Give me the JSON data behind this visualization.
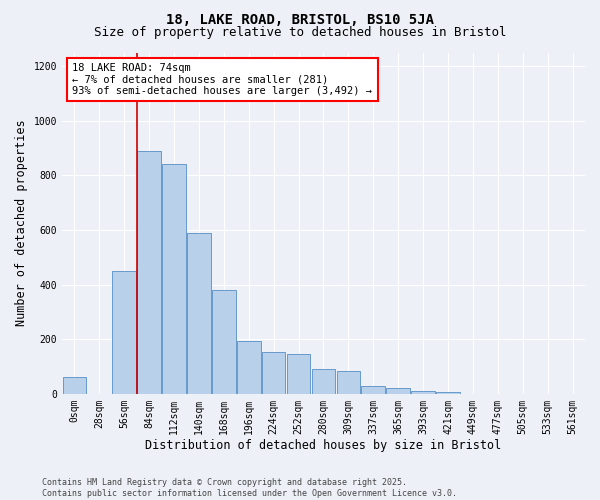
{
  "title1": "18, LAKE ROAD, BRISTOL, BS10 5JA",
  "title2": "Size of property relative to detached houses in Bristol",
  "xlabel": "Distribution of detached houses by size in Bristol",
  "ylabel": "Number of detached properties",
  "categories": [
    "0sqm",
    "28sqm",
    "56sqm",
    "84sqm",
    "112sqm",
    "140sqm",
    "168sqm",
    "196sqm",
    "224sqm",
    "252sqm",
    "280sqm",
    "309sqm",
    "337sqm",
    "365sqm",
    "393sqm",
    "421sqm",
    "449sqm",
    "477sqm",
    "505sqm",
    "533sqm",
    "561sqm"
  ],
  "values": [
    62,
    0,
    450,
    890,
    840,
    590,
    380,
    195,
    155,
    145,
    90,
    85,
    30,
    20,
    12,
    8,
    0,
    0,
    0,
    0,
    0
  ],
  "bar_color": "#b8d0ea",
  "bar_edge_color": "#6699cc",
  "highlight_color": "#cc0000",
  "red_line_x": 2.5,
  "annotation_text_line1": "18 LAKE ROAD: 74sqm",
  "annotation_text_line2": "← 7% of detached houses are smaller (281)",
  "annotation_text_line3": "93% of semi-detached houses are larger (3,492) →",
  "ylim": [
    0,
    1250
  ],
  "yticks": [
    0,
    200,
    400,
    600,
    800,
    1000,
    1200
  ],
  "background_color": "#edf1f7",
  "grid_color": "#ffffff",
  "footer_text": "Contains HM Land Registry data © Crown copyright and database right 2025.\nContains public sector information licensed under the Open Government Licence v3.0.",
  "title_fontsize": 10,
  "subtitle_fontsize": 9,
  "axis_label_fontsize": 8.5,
  "tick_fontsize": 7,
  "footer_fontsize": 6,
  "annotation_fontsize": 7.5
}
